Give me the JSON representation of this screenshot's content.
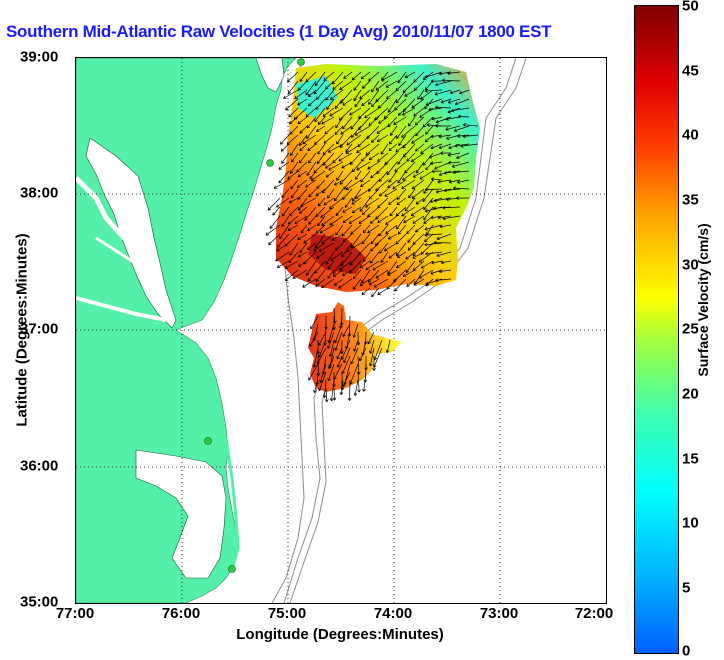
{
  "title": "Southern Mid-Atlantic Raw Velocities (1 Day Avg) 2010/11/07 1800 EST",
  "axes": {
    "xlabel": "Longitude (Degrees:Minutes)",
    "ylabel": "Latitude (Degrees:Minutes)",
    "xticks": [
      "77:00",
      "76:00",
      "75:00",
      "74:00",
      "73:00",
      "72:00"
    ],
    "yticks": [
      "39:00",
      "38:00",
      "37:00",
      "36:00",
      "35:00"
    ]
  },
  "colorbar": {
    "label": "Surface Velocity (cm/s)",
    "ticks": [
      "50",
      "45",
      "40",
      "35",
      "30",
      "25",
      "20",
      "15",
      "10",
      "5",
      "0"
    ]
  },
  "colors": {
    "land": "#55f0a8",
    "title": "#1a1aff",
    "grid": "#000000",
    "isobath": "#8c8c8c",
    "station": "#2ecc40"
  }
}
